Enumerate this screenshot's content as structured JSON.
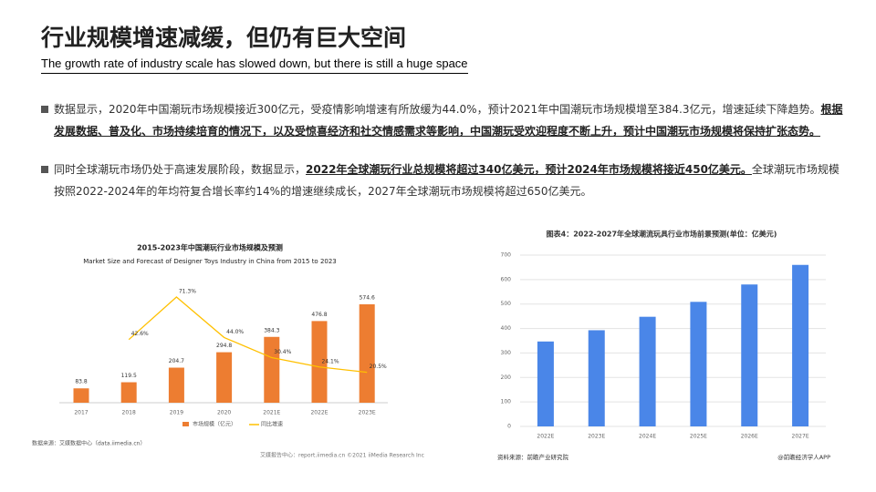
{
  "header": {
    "title": "行业规模增速减缓，但仍有巨大空间",
    "subtitle": "The growth rate of industry scale has slowed down, but there is still a huge space"
  },
  "bullets": [
    {
      "text": "数据显示，2020年中国潮玩市场规模接近300亿元，受疫情影响增速有所放缓为44.0%，预计2021年中国潮玩市场规模增至384.3亿元，增速延续下降趋势。",
      "highlight": "根据发展数据、普及化、市场持续培育的情况下，以及受惊喜经济和社交情感需求等影响，中国潮玩受欢迎程度不断上升，预计中国潮玩市场规模将保持扩张态势。"
    },
    {
      "text": "同时全球潮玩市场仍处于高速发展阶段，数据显示，",
      "highlight": "2022年全球潮玩行业总规模将超过340亿美元，预计2024年市场规模将接近450亿美元。",
      "tail": "全球潮玩市场规模按照2022-2024年的年均符复合增长率约14%的增速继续成长，2027年全球潮玩市场规模将超过650亿美元。"
    }
  ],
  "chart_data": [
    {
      "type": "combo",
      "title": "2015-2023年中国潮玩行业市场规模及预测",
      "subtitle": "Market Size and Forecast of Designer Toys Industry in China from 2015 to 2023",
      "categories": [
        "2017",
        "2018",
        "2019",
        "2020",
        "2021E",
        "2022E",
        "2023E"
      ],
      "series": [
        {
          "name": "市场规模（亿元）",
          "type": "bar",
          "color": "#ed7d31",
          "values": [
            83.8,
            119.5,
            204.7,
            294.8,
            384.3,
            476.8,
            574.6
          ]
        },
        {
          "name": "同比增速",
          "type": "line",
          "color": "#ffc000",
          "values": [
            null,
            42.6,
            71.3,
            44.0,
            30.4,
            24.1,
            20.5
          ],
          "value_labels": [
            null,
            "42.6%",
            "71.3%",
            "44.0%",
            "30.4%",
            "24.1%",
            "20.5%"
          ]
        }
      ],
      "source": "数据来源：艾媒数据中心（data.iimedia.cn）",
      "footer": "艾媒报告中心：report.iimedia.cn ©2021 iiMedia Research Inc"
    },
    {
      "type": "bar",
      "title": "图表4：2022-2027年全球潮流玩具行业市场前景预测(单位：亿美元)",
      "categories": [
        "2022E",
        "2023E",
        "2024E",
        "2025E",
        "2026E",
        "2027E"
      ],
      "values": [
        347,
        393,
        448,
        509,
        580,
        660
      ],
      "color": "#4a86e8",
      "ylim": [
        0,
        700
      ],
      "yticks": [
        0,
        100,
        200,
        300,
        400,
        500,
        600,
        700
      ],
      "grid": true,
      "source": "资料来源：前瞻产业研究院",
      "footer": "@前瞻经济学人APP"
    }
  ]
}
